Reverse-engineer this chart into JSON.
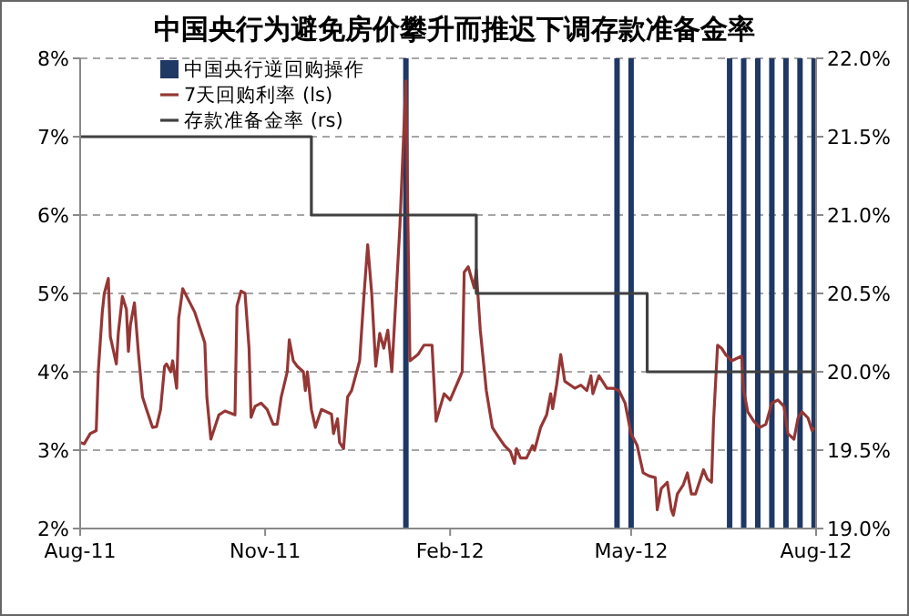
{
  "chart_data": {
    "type": "line",
    "title": "中国央行为避免房价攀升而推迟下调存款准备金率",
    "xlim": [
      "2011-08-01",
      "2012-08-01"
    ],
    "xticks": [
      {
        "value": "2011-08-01",
        "label": "Aug-11"
      },
      {
        "value": "2011-11-01",
        "label": "Nov-11"
      },
      {
        "value": "2012-02-01",
        "label": "Feb-12"
      },
      {
        "value": "2012-05-01",
        "label": "May-12"
      },
      {
        "value": "2012-08-01",
        "label": "Aug-12"
      }
    ],
    "ylim": [
      2,
      8
    ],
    "yticks": [
      {
        "value": 2,
        "label": "2%"
      },
      {
        "value": 3,
        "label": "3%"
      },
      {
        "value": 4,
        "label": "4%"
      },
      {
        "value": 5,
        "label": "5%"
      },
      {
        "value": 6,
        "label": "6%"
      },
      {
        "value": 7,
        "label": "7%"
      },
      {
        "value": 8,
        "label": "8%"
      }
    ],
    "y2lim": [
      19,
      22
    ],
    "y2ticks": [
      {
        "value": 19,
        "label": "19.0%"
      },
      {
        "value": 19.5,
        "label": "19.5%"
      },
      {
        "value": 20,
        "label": "20.0%"
      },
      {
        "value": 20.5,
        "label": "20.5%"
      },
      {
        "value": 21,
        "label": "21.0%"
      },
      {
        "value": 21.5,
        "label": "21.5%"
      },
      {
        "value": 22,
        "label": "22.0%"
      }
    ],
    "grid": "y",
    "legend": "top left",
    "line_style": "solid",
    "series": [
      {
        "type": "bar",
        "name": "中国央行逆回购操作",
        "color": "#1f3864",
        "x": [
          "2012-01-10",
          "2012-04-24",
          "2012-05-01",
          "2012-06-19",
          "2012-06-26",
          "2012-07-03",
          "2012-07-10",
          "2012-07-17",
          "2012-07-24",
          "2012-07-31"
        ],
        "values": [
          8,
          8,
          8,
          8,
          8,
          8,
          8,
          8,
          8,
          8
        ]
      },
      {
        "name": "7天回购利率 (ls)",
        "color": "#953735",
        "x": [
          "2011-08-01",
          "2011-08-03",
          "2011-08-06",
          "2011-08-09",
          "2011-08-10",
          "2011-08-12",
          "2011-08-13",
          "2011-08-15",
          "2011-08-16",
          "2011-08-19",
          "2011-08-20",
          "2011-08-22",
          "2011-08-24",
          "2011-08-25",
          "2011-08-26",
          "2011-08-28",
          "2011-08-30",
          "2011-09-01",
          "2011-09-03",
          "2011-09-06",
          "2011-09-08",
          "2011-09-10",
          "2011-09-12",
          "2011-09-13",
          "2011-09-15",
          "2011-09-16",
          "2011-09-18",
          "2011-09-19",
          "2011-09-21",
          "2011-09-27",
          "2011-10-02",
          "2011-10-03",
          "2011-10-05",
          "2011-10-09",
          "2011-10-12",
          "2011-10-17",
          "2011-10-18",
          "2011-10-20",
          "2011-10-22",
          "2011-10-24",
          "2011-10-25",
          "2011-10-27",
          "2011-10-30",
          "2011-11-02",
          "2011-11-05",
          "2011-11-07",
          "2011-11-09",
          "2011-11-12",
          "2011-11-13",
          "2011-11-15",
          "2011-11-17",
          "2011-11-20",
          "2011-11-21",
          "2011-11-22",
          "2011-11-24",
          "2011-11-26",
          "2011-11-29",
          "2011-12-04",
          "2011-12-05",
          "2011-12-07",
          "2011-12-08",
          "2011-12-10",
          "2011-12-12",
          "2011-12-14",
          "2011-12-18",
          "2011-12-20",
          "2011-12-22",
          "2011-12-24",
          "2011-12-26",
          "2011-12-28",
          "2011-12-30",
          "2012-01-01",
          "2012-01-03",
          "2012-01-05",
          "2012-01-07",
          "2012-01-10",
          "2012-01-12",
          "2012-01-16",
          "2012-01-19",
          "2012-01-23",
          "2012-01-25",
          "2012-01-29",
          "2012-02-01",
          "2012-02-07",
          "2012-02-08",
          "2012-02-10",
          "2012-02-13",
          "2012-02-14",
          "2012-02-16",
          "2012-02-19",
          "2012-02-22",
          "2012-02-25",
          "2012-02-28",
          "2012-03-02",
          "2012-03-04",
          "2012-03-05",
          "2012-03-07",
          "2012-03-10",
          "2012-03-13",
          "2012-03-14",
          "2012-03-17",
          "2012-03-20",
          "2012-03-22",
          "2012-03-23",
          "2012-03-25",
          "2012-03-27",
          "2012-03-29",
          "2012-04-03",
          "2012-04-06",
          "2012-04-09",
          "2012-04-11",
          "2012-04-12",
          "2012-04-15",
          "2012-04-19",
          "2012-04-22",
          "2012-04-25",
          "2012-04-28",
          "2012-05-01",
          "2012-05-04",
          "2012-05-07",
          "2012-05-10",
          "2012-05-13",
          "2012-05-14",
          "2012-05-16",
          "2012-05-19",
          "2012-05-21",
          "2012-05-22",
          "2012-05-24",
          "2012-05-27",
          "2012-05-29",
          "2012-05-31",
          "2012-06-02",
          "2012-06-05",
          "2012-06-06",
          "2012-06-08",
          "2012-06-10",
          "2012-06-11",
          "2012-06-13",
          "2012-06-15",
          "2012-06-17",
          "2012-06-20",
          "2012-06-25",
          "2012-06-26",
          "2012-06-28",
          "2012-07-01",
          "2012-07-04",
          "2012-07-07",
          "2012-07-10",
          "2012-07-13",
          "2012-07-16",
          "2012-07-18",
          "2012-07-21",
          "2012-07-23",
          "2012-07-25",
          "2012-07-28",
          "2012-07-30",
          "2012-07-31"
        ],
        "values": [
          3.1,
          3.08,
          3.21,
          3.25,
          4.0,
          4.76,
          5.0,
          5.19,
          4.45,
          4.1,
          4.5,
          4.96,
          4.8,
          4.26,
          4.6,
          4.88,
          4.23,
          3.68,
          3.52,
          3.29,
          3.3,
          3.52,
          4.07,
          4.1,
          4.0,
          4.14,
          3.79,
          4.68,
          5.06,
          4.76,
          4.37,
          3.68,
          3.14,
          3.45,
          3.5,
          3.45,
          4.84,
          5.03,
          5.0,
          4.3,
          3.42,
          3.56,
          3.6,
          3.52,
          3.33,
          3.33,
          3.68,
          4.0,
          4.41,
          4.14,
          4.07,
          4.0,
          3.76,
          4.0,
          3.52,
          3.29,
          3.52,
          3.46,
          3.21,
          3.4,
          3.1,
          3.02,
          3.68,
          3.76,
          4.14,
          4.92,
          5.62,
          5.0,
          4.07,
          4.49,
          4.3,
          4.53,
          4.0,
          4.92,
          5.85,
          7.71,
          4.14,
          4.22,
          4.34,
          4.34,
          3.37,
          3.72,
          3.64,
          4.0,
          5.27,
          5.34,
          5.07,
          5.3,
          4.53,
          3.76,
          3.29,
          3.17,
          3.06,
          2.98,
          2.83,
          3.02,
          2.9,
          2.9,
          3.06,
          3.0,
          3.29,
          3.45,
          3.72,
          3.53,
          3.84,
          4.22,
          3.88,
          3.79,
          3.83,
          3.76,
          3.95,
          3.72,
          3.95,
          3.79,
          3.79,
          3.76,
          3.6,
          3.21,
          3.06,
          2.71,
          2.67,
          2.65,
          2.24,
          2.51,
          2.59,
          2.24,
          2.17,
          2.44,
          2.56,
          2.71,
          2.44,
          2.44,
          2.67,
          2.75,
          2.63,
          2.59,
          3.37,
          4.34,
          4.3,
          4.22,
          4.14,
          4.2,
          3.76,
          3.49,
          3.37,
          3.29,
          3.33,
          3.6,
          3.64,
          3.56,
          3.21,
          3.14,
          3.41,
          3.49,
          3.41,
          3.25,
          3.29
        ]
      },
      {
        "type": "step",
        "name": "存款准备金率 (rs)",
        "color": "#404040",
        "axis": "y2",
        "x": [
          "2011-08-01",
          "2011-11-24",
          "2012-02-14",
          "2012-05-09",
          "2012-08-01"
        ],
        "values": [
          21.5,
          21,
          20.5,
          20,
          20
        ]
      }
    ]
  }
}
